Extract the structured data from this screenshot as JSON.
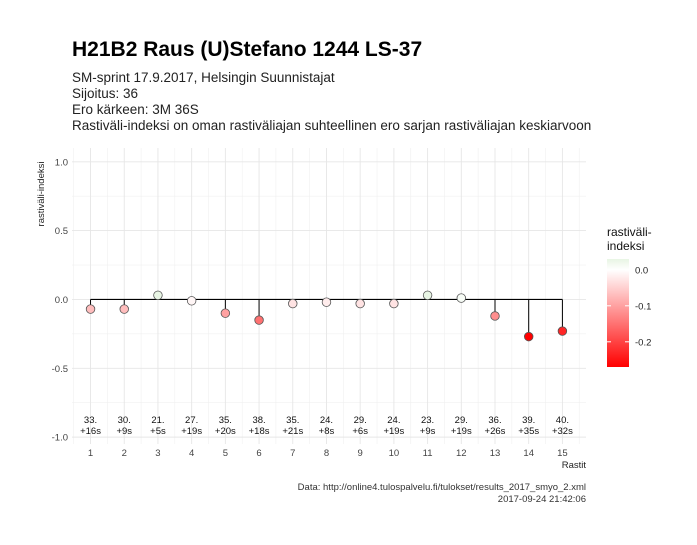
{
  "chart_data": {
    "type": "scatter",
    "title": "H21B2 Raus (U)Stefano 1244 LS-37",
    "subtitle_lines": [
      "SM-sprint 17.9.2017, Helsingin Suunnistajat",
      "Sijoitus: 36",
      "Ero kärkeen: 3M 36S",
      "Rastiväli-indeksi on oman rastiväliajan suhteellinen ero sarjan rastiväliajan keskiarvoon"
    ],
    "xlabel": "Rastit",
    "ylabel": "rastiväli-indeksi",
    "xlim": [
      0.45,
      15.7
    ],
    "ylim": [
      -1.05,
      1.1
    ],
    "x_ticks": [
      1,
      2,
      3,
      4,
      5,
      6,
      7,
      8,
      9,
      10,
      11,
      12,
      13,
      14,
      15
    ],
    "y_ticks": [
      1.0,
      0.5,
      0.0,
      -0.5,
      -1.0
    ],
    "y_tick_labels": [
      "1.0",
      "0.5",
      "0.0",
      "-0.5",
      "-1.0"
    ],
    "grid": true,
    "zero_line": true,
    "points": [
      {
        "x": 1,
        "y": -0.07,
        "rank_label": "33.",
        "diff_label": "+16s"
      },
      {
        "x": 2,
        "y": -0.07,
        "rank_label": "30.",
        "diff_label": "+9s"
      },
      {
        "x": 3,
        "y": 0.03,
        "rank_label": "21.",
        "diff_label": "+5s"
      },
      {
        "x": 4,
        "y": -0.01,
        "rank_label": "27.",
        "diff_label": "+19s"
      },
      {
        "x": 5,
        "y": -0.1,
        "rank_label": "35.",
        "diff_label": "+20s"
      },
      {
        "x": 6,
        "y": -0.15,
        "rank_label": "38.",
        "diff_label": "+18s"
      },
      {
        "x": 7,
        "y": -0.03,
        "rank_label": "35.",
        "diff_label": "+21s"
      },
      {
        "x": 8,
        "y": -0.02,
        "rank_label": "24.",
        "diff_label": "+8s"
      },
      {
        "x": 9,
        "y": -0.03,
        "rank_label": "29.",
        "diff_label": "+6s"
      },
      {
        "x": 10,
        "y": -0.03,
        "rank_label": "24.",
        "diff_label": "+19s"
      },
      {
        "x": 11,
        "y": 0.03,
        "rank_label": "23.",
        "diff_label": "+9s"
      },
      {
        "x": 12,
        "y": 0.01,
        "rank_label": "29.",
        "diff_label": "+19s"
      },
      {
        "x": 13,
        "y": -0.12,
        "rank_label": "36.",
        "diff_label": "+26s"
      },
      {
        "x": 14,
        "y": -0.27,
        "rank_label": "39.",
        "diff_label": "+35s"
      },
      {
        "x": 15,
        "y": -0.23,
        "rank_label": "40.",
        "diff_label": "+32s"
      }
    ],
    "annotation_y": -0.92,
    "legend": {
      "title_lines": [
        "rastiväli-",
        "indeksi"
      ],
      "ticks": [
        0.0,
        -0.1,
        -0.2
      ],
      "tick_labels": [
        "0.0",
        "-0.1",
        "-0.2"
      ],
      "range": [
        -0.27,
        0.03
      ],
      "placement": "right"
    },
    "colors": {
      "negative": "#ff0000",
      "zero": "#ffffff",
      "positive": "#e8f5e4",
      "stroke": "#555555",
      "zero_line": "#000000",
      "grid": "#e6e6e6"
    },
    "caption_lines": [
      "Data: http://online4.tulospalvelu.fi/tulokset/results_2017_smyo_2.xml",
      "2017-09-24 21:42:06"
    ]
  }
}
